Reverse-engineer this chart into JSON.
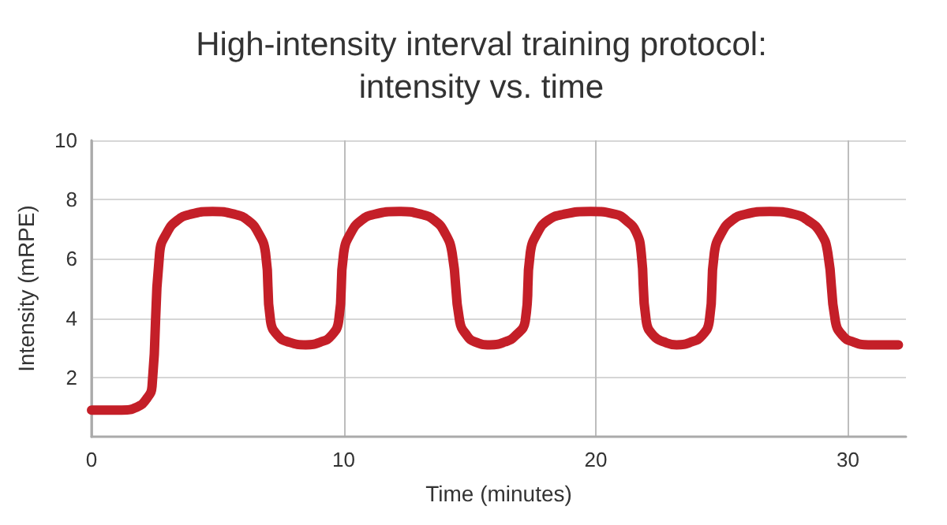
{
  "chart_data": {
    "type": "line",
    "title": "High-intensity interval training protocol:\nintensity vs. time",
    "xlabel": "Time (minutes)",
    "ylabel": "Intensity (mRPE)",
    "x": [
      0,
      1.2,
      1.8,
      2.2,
      2.4,
      2.7,
      3.0,
      3.4,
      3.9,
      4.8,
      5.7,
      6.2,
      6.6,
      6.9,
      7.1,
      7.4,
      7.8,
      8.5,
      9.1,
      9.5,
      9.8,
      10.0,
      10.3,
      10.7,
      11.2,
      12.2,
      13.1,
      13.6,
      14.0,
      14.3,
      14.6,
      14.9,
      15.2,
      15.8,
      16.4,
      16.8,
      17.2,
      17.4,
      17.7,
      18.1,
      18.7,
      19.8,
      20.8,
      21.2,
      21.6,
      21.8,
      22.0,
      22.3,
      22.7,
      23.2,
      23.8,
      24.2,
      24.5,
      24.7,
      25.0,
      25.4,
      25.9,
      26.9,
      27.9,
      28.4,
      28.9,
      29.2,
      29.5,
      29.8,
      30.2,
      30.8,
      32.0
    ],
    "series": [
      {
        "color": "#c41f28",
        "values": [
          0.9,
          0.9,
          1.0,
          1.3,
          1.7,
          6.2,
          6.9,
          7.3,
          7.5,
          7.6,
          7.5,
          7.3,
          6.9,
          6.2,
          3.9,
          3.4,
          3.2,
          3.1,
          3.2,
          3.4,
          3.9,
          6.2,
          6.9,
          7.3,
          7.5,
          7.6,
          7.5,
          7.3,
          6.9,
          6.2,
          3.9,
          3.4,
          3.2,
          3.1,
          3.2,
          3.4,
          3.9,
          6.2,
          6.9,
          7.3,
          7.5,
          7.6,
          7.5,
          7.3,
          6.9,
          6.2,
          3.9,
          3.4,
          3.2,
          3.1,
          3.2,
          3.4,
          3.9,
          6.2,
          6.9,
          7.3,
          7.5,
          7.6,
          7.5,
          7.3,
          6.9,
          6.2,
          3.9,
          3.4,
          3.2,
          3.1,
          3.1
        ]
      }
    ],
    "xlim": [
      0,
      32.3
    ],
    "ylim": [
      0,
      10
    ],
    "xticks": [
      0,
      10,
      20,
      30
    ],
    "yticks": [
      2,
      4,
      6,
      8,
      10
    ],
    "grid": true
  }
}
